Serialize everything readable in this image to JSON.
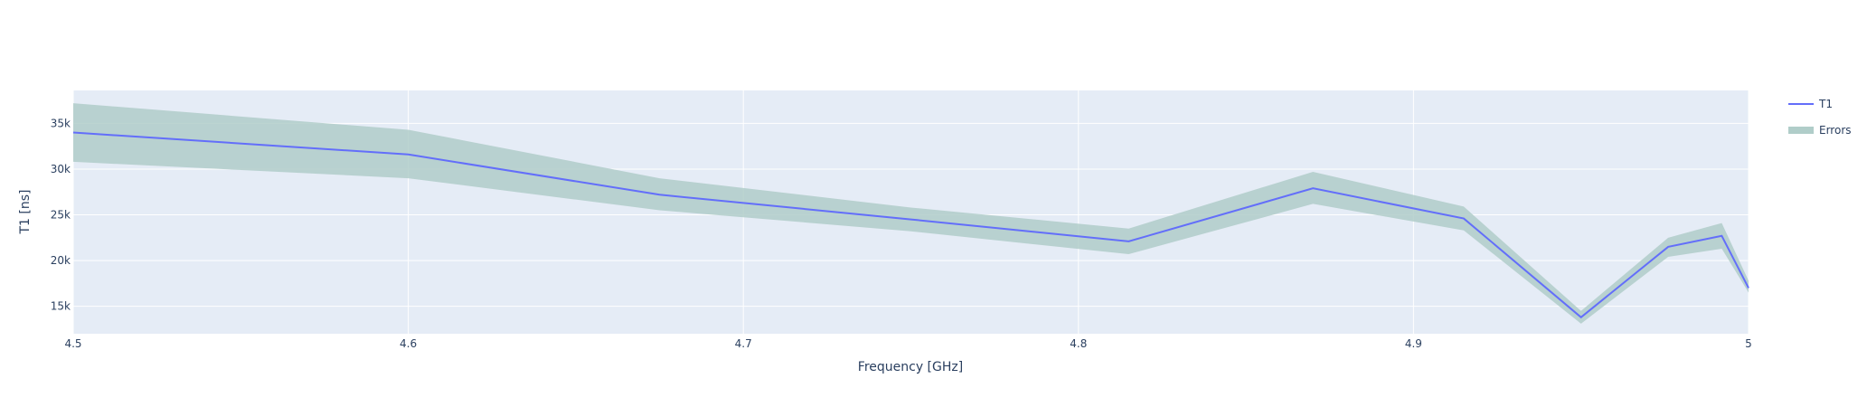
{
  "chart_data": {
    "type": "line",
    "title": "",
    "xlabel": "Frequency [GHz]",
    "ylabel": "T1 [ns]",
    "xlim": [
      4.5,
      5.0
    ],
    "ylim": [
      12000,
      38600
    ],
    "grid": true,
    "legend_position": "top-right",
    "x_ticks": [
      4.5,
      4.6,
      4.7,
      4.8,
      4.9,
      5.0
    ],
    "x_tick_labels": [
      "4.5",
      "4.6",
      "4.7",
      "4.8",
      "4.9",
      "5"
    ],
    "y_ticks": [
      15000,
      20000,
      25000,
      30000,
      35000
    ],
    "y_tick_labels": [
      "15k",
      "20k",
      "25k",
      "30k",
      "35k"
    ],
    "x": [
      4.5,
      4.6,
      4.675,
      4.75,
      4.815,
      4.87,
      4.915,
      4.95,
      4.976,
      4.992,
      5.0
    ],
    "series": [
      {
        "name": "T1",
        "kind": "line",
        "color": "#636efa",
        "values": [
          34000,
          31600,
          27200,
          24500,
          22100,
          27900,
          24600,
          13800,
          21500,
          22700,
          17000
        ]
      },
      {
        "name": "Errors",
        "kind": "band",
        "color": "#b0cdc9",
        "upper": [
          37200,
          34300,
          29000,
          25800,
          23500,
          29700,
          25900,
          14500,
          22500,
          24100,
          17800
        ],
        "lower": [
          30800,
          29000,
          25500,
          23200,
          20700,
          26200,
          23300,
          13100,
          20400,
          21300,
          16500
        ]
      }
    ]
  }
}
